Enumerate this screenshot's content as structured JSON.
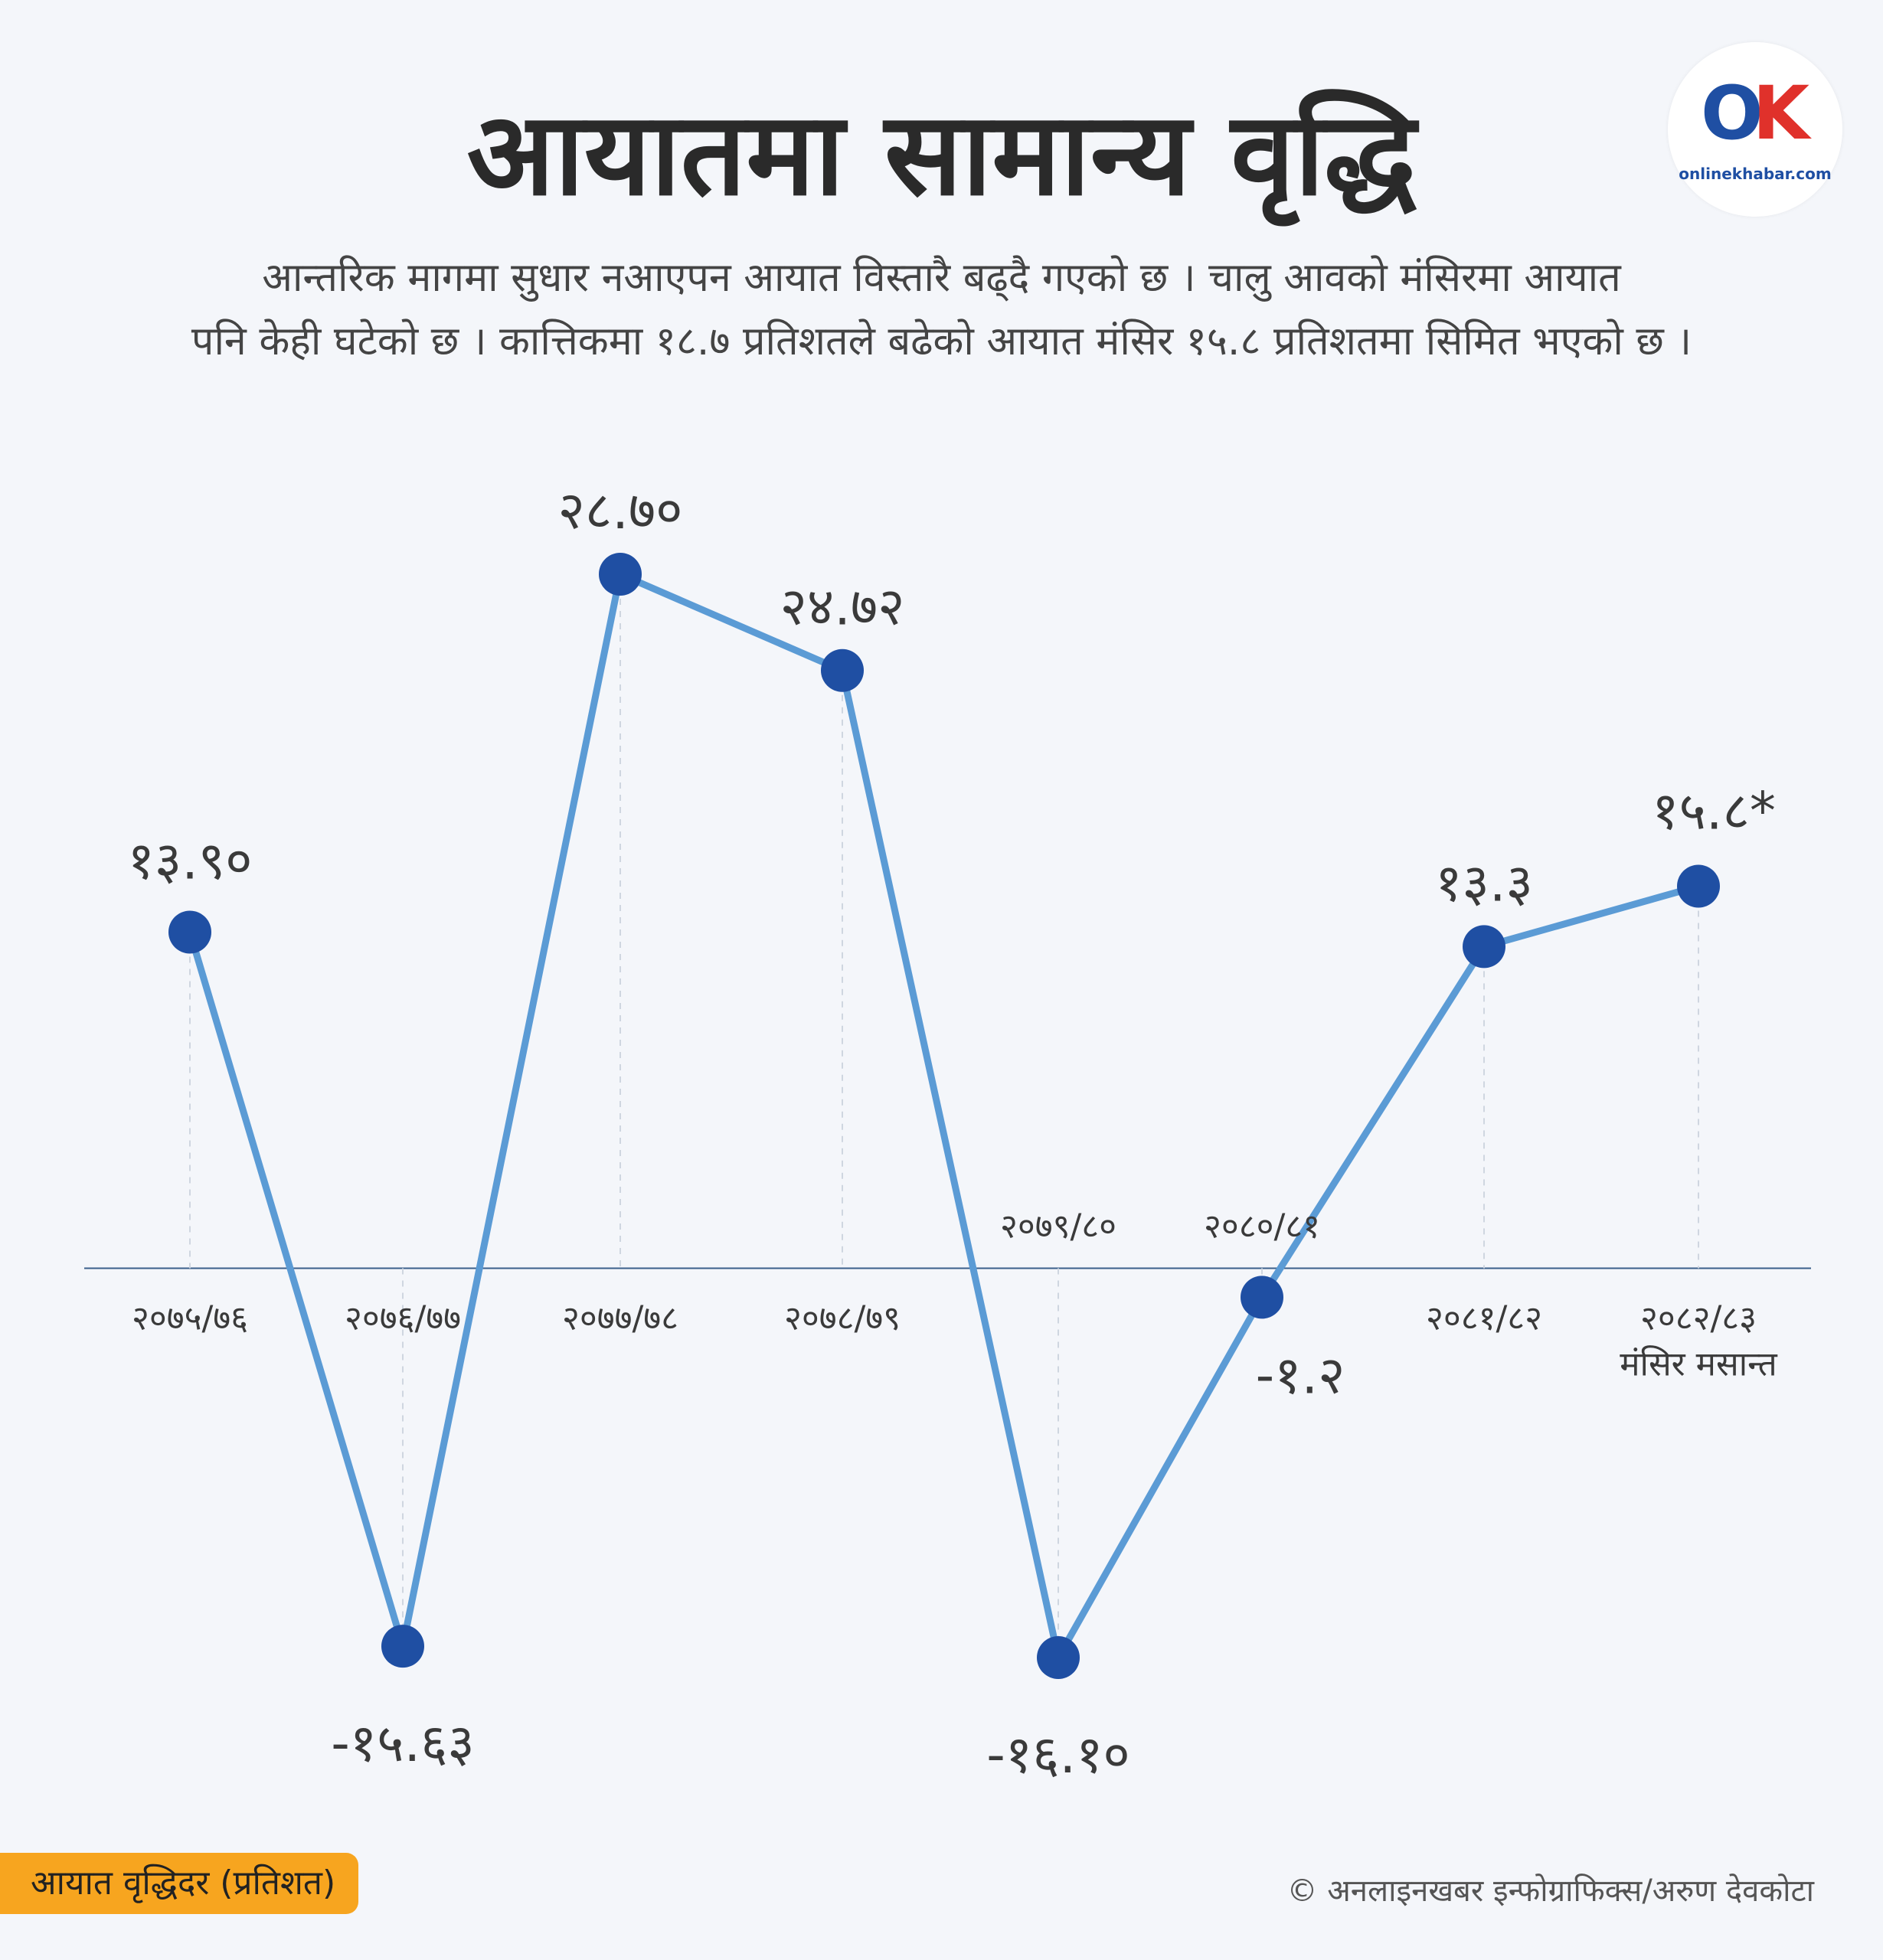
{
  "title": "आयातमा सामान्य वृद्धि",
  "subtitle_line1": "आन्तरिक मागमा सुधार नआएपन आयात विस्तारै बढ्दै गएको छ । चालु आवको मंसिरमा आयात",
  "subtitle_line2": "पनि केही घटेको छ । कात्तिकमा १८.७ प्रतिशतले बढेको आयात मंसिर १५.८ प्रतिशतमा सिमित भएको छ ।",
  "logo": {
    "mark_o": "O",
    "mark_k": "K",
    "brand": "onlinekhabar.com"
  },
  "colors": {
    "line": "#5b9bd5",
    "marker": "#1f4fa3",
    "axis": "#3a5f8a",
    "legend_bg": "#f7a51f"
  },
  "legend_label": "आयात वृद्धिदर  (प्रतिशत)",
  "credit": "© अनलाइनखबर इन्फोग्राफिक्स/अरुण देवकोटा",
  "chart_data": {
    "type": "line",
    "categories": [
      "२०७५/७६",
      "२०७६/७७",
      "२०७७/७८",
      "२०७८/७९",
      "२०७९/८०",
      "२०८०/८१",
      "२०८१/८२",
      "२०८२/८३"
    ],
    "category_sublabels": [
      "",
      "",
      "",
      "",
      "",
      "",
      "",
      "मंसिर  मसान्त"
    ],
    "values": [
      13.9,
      -15.63,
      28.7,
      24.72,
      -16.1,
      -1.2,
      13.3,
      15.8
    ],
    "value_labels": [
      "१३.९०",
      "-१५.६३",
      "२८.७०",
      "२४.७२",
      "-१६.१०",
      "-१.२",
      "१३.३",
      "१५.८*"
    ],
    "ylim": [
      -16.1,
      28.7
    ],
    "grid": false
  }
}
